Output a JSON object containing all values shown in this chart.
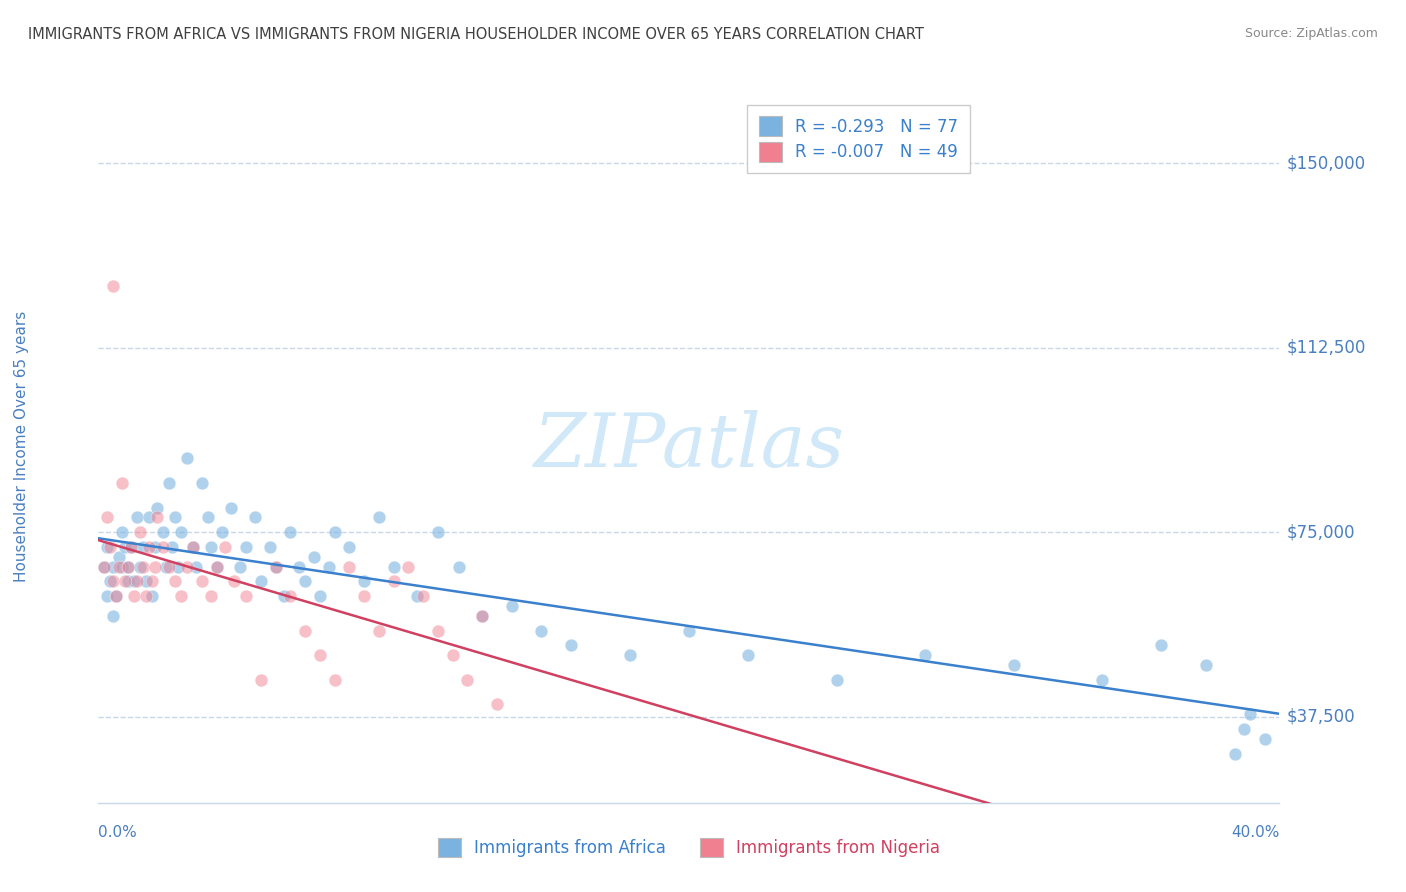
{
  "title": "IMMIGRANTS FROM AFRICA VS IMMIGRANTS FROM NIGERIA HOUSEHOLDER INCOME OVER 65 YEARS CORRELATION CHART",
  "source": "Source: ZipAtlas.com",
  "ylabel": "Householder Income Over 65 years",
  "xlim": [
    0.0,
    0.4
  ],
  "ylim": [
    20000,
    165000
  ],
  "yticks": [
    37500,
    75000,
    112500,
    150000
  ],
  "ytick_labels": [
    "$37,500",
    "$75,000",
    "$112,500",
    "$150,000"
  ],
  "watermark": "ZIPatlas",
  "legend_africa_R": -0.293,
  "legend_africa_N": 77,
  "legend_nigeria_R": -0.007,
  "legend_nigeria_N": 49,
  "africa_label": "Immigrants from Africa",
  "nigeria_label": "Immigrants from Nigeria",
  "africa_color": "#7ab3e0",
  "nigeria_color": "#f08090",
  "africa_line_color": "#3a80cc",
  "nigeria_line_color": "#d04060",
  "grid_color": "#c8d8e8",
  "background_color": "#ffffff",
  "title_color": "#404040",
  "tick_color": "#4a7fc0",
  "source_color": "#888888",
  "watermark_color": "#d0e8f8",
  "africa_x": [
    0.002,
    0.003,
    0.003,
    0.004,
    0.005,
    0.005,
    0.006,
    0.007,
    0.008,
    0.008,
    0.009,
    0.01,
    0.01,
    0.011,
    0.012,
    0.013,
    0.014,
    0.015,
    0.016,
    0.017,
    0.018,
    0.019,
    0.02,
    0.022,
    0.023,
    0.024,
    0.025,
    0.026,
    0.027,
    0.028,
    0.03,
    0.032,
    0.033,
    0.035,
    0.037,
    0.038,
    0.04,
    0.042,
    0.045,
    0.048,
    0.05,
    0.053,
    0.055,
    0.058,
    0.06,
    0.063,
    0.065,
    0.068,
    0.07,
    0.073,
    0.075,
    0.078,
    0.08,
    0.085,
    0.09,
    0.095,
    0.1,
    0.108,
    0.115,
    0.122,
    0.13,
    0.14,
    0.15,
    0.16,
    0.18,
    0.2,
    0.22,
    0.25,
    0.28,
    0.31,
    0.34,
    0.36,
    0.375,
    0.385,
    0.388,
    0.39,
    0.395
  ],
  "africa_y": [
    68000,
    62000,
    72000,
    65000,
    68000,
    58000,
    62000,
    70000,
    68000,
    75000,
    72000,
    65000,
    68000,
    72000,
    65000,
    78000,
    68000,
    72000,
    65000,
    78000,
    62000,
    72000,
    80000,
    75000,
    68000,
    85000,
    72000,
    78000,
    68000,
    75000,
    90000,
    72000,
    68000,
    85000,
    78000,
    72000,
    68000,
    75000,
    80000,
    68000,
    72000,
    78000,
    65000,
    72000,
    68000,
    62000,
    75000,
    68000,
    65000,
    70000,
    62000,
    68000,
    75000,
    72000,
    65000,
    78000,
    68000,
    62000,
    75000,
    68000,
    58000,
    60000,
    55000,
    52000,
    50000,
    55000,
    50000,
    45000,
    50000,
    48000,
    45000,
    52000,
    48000,
    30000,
    35000,
    38000,
    33000
  ],
  "nigeria_x": [
    0.002,
    0.003,
    0.004,
    0.005,
    0.005,
    0.006,
    0.007,
    0.008,
    0.009,
    0.01,
    0.011,
    0.012,
    0.013,
    0.014,
    0.015,
    0.016,
    0.017,
    0.018,
    0.019,
    0.02,
    0.022,
    0.024,
    0.026,
    0.028,
    0.03,
    0.032,
    0.035,
    0.038,
    0.04,
    0.043,
    0.046,
    0.05,
    0.055,
    0.06,
    0.065,
    0.07,
    0.075,
    0.08,
    0.085,
    0.09,
    0.095,
    0.1,
    0.105,
    0.11,
    0.115,
    0.12,
    0.125,
    0.13,
    0.135
  ],
  "nigeria_y": [
    68000,
    78000,
    72000,
    65000,
    125000,
    62000,
    68000,
    85000,
    65000,
    68000,
    72000,
    62000,
    65000,
    75000,
    68000,
    62000,
    72000,
    65000,
    68000,
    78000,
    72000,
    68000,
    65000,
    62000,
    68000,
    72000,
    65000,
    62000,
    68000,
    72000,
    65000,
    62000,
    45000,
    68000,
    62000,
    55000,
    50000,
    45000,
    68000,
    62000,
    55000,
    65000,
    68000,
    62000,
    55000,
    50000,
    45000,
    58000,
    40000
  ]
}
